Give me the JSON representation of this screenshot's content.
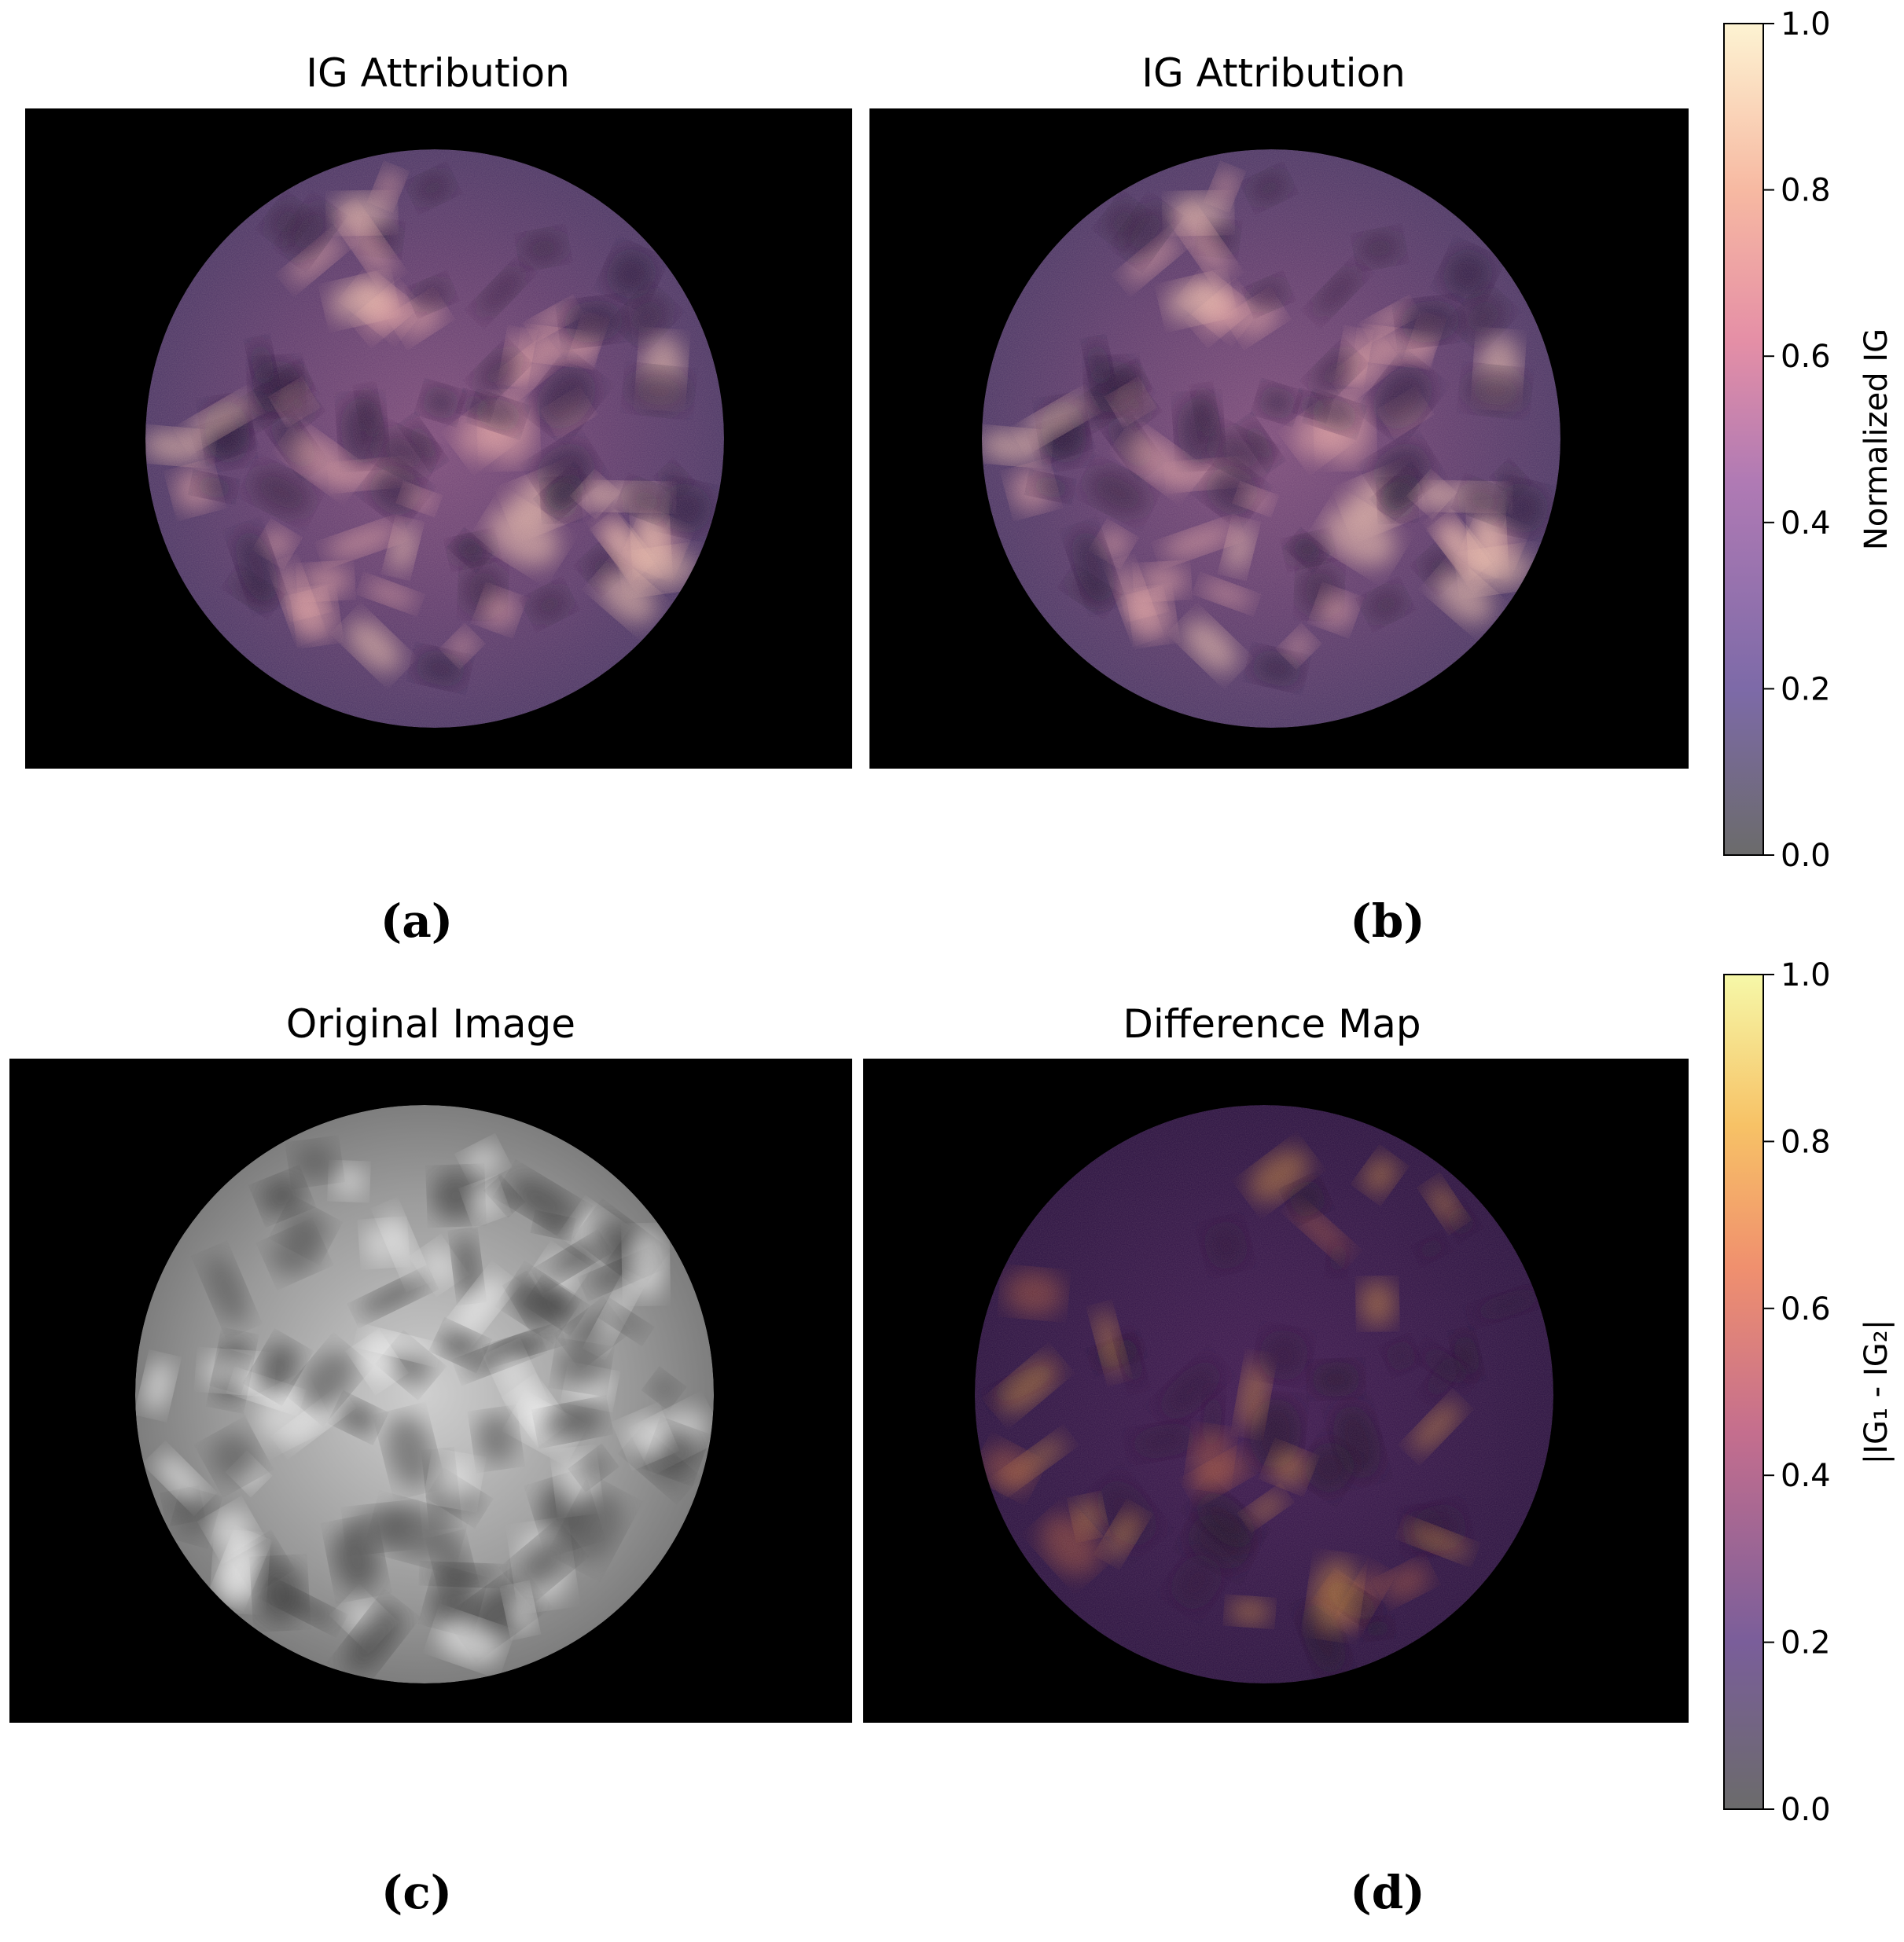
{
  "figure": {
    "panels": [
      {
        "id": "a",
        "title": "IG Attribution",
        "label": "(a)",
        "colormap": "magma"
      },
      {
        "id": "b",
        "title": "IG Attribution",
        "label": "(b)",
        "colormap": "magma"
      },
      {
        "id": "c",
        "title": "Original Image",
        "label": "(c)",
        "colormap": "gray"
      },
      {
        "id": "d",
        "title": "Difference Map",
        "label": "(d)",
        "colormap": "inferno"
      }
    ],
    "colorbars": [
      {
        "id": "top",
        "label": "Normalized IG",
        "ticks": [
          "0.0",
          "0.2",
          "0.4",
          "0.6",
          "0.8",
          "1.0"
        ],
        "range": [
          0,
          1
        ],
        "colors": [
          "#6b6b6b",
          "#7d6aa8",
          "#b07ab4",
          "#e58fa6",
          "#f7b9a2",
          "#fdf3d2"
        ]
      },
      {
        "id": "bottom",
        "label": "|IG₁ - IG₂|",
        "ticks": [
          "0.0",
          "0.2",
          "0.4",
          "0.6",
          "0.8",
          "1.0"
        ],
        "range": [
          0,
          1
        ],
        "colors": [
          "#6b6b6b",
          "#7a5e9a",
          "#c46e8e",
          "#f0906e",
          "#f7c266",
          "#f6f8a8"
        ]
      }
    ]
  },
  "chart_data": [
    {
      "type": "heatmap",
      "title": "IG Attribution",
      "panel": "(a)",
      "colorbar_label": "Normalized IG",
      "value_range": [
        0,
        1
      ],
      "colorbar_ticks": [
        0.0,
        0.2,
        0.4,
        0.6,
        0.8,
        1.0
      ]
    },
    {
      "type": "heatmap",
      "title": "IG Attribution",
      "panel": "(b)",
      "colorbar_label": "Normalized IG",
      "value_range": [
        0,
        1
      ],
      "colorbar_ticks": [
        0.0,
        0.2,
        0.4,
        0.6,
        0.8,
        1.0
      ]
    },
    {
      "type": "heatmap",
      "title": "Original Image",
      "panel": "(c)"
    },
    {
      "type": "heatmap",
      "title": "Difference Map",
      "panel": "(d)",
      "colorbar_label": "|IG₁ - IG₂|",
      "value_range": [
        0,
        1
      ],
      "colorbar_ticks": [
        0.0,
        0.2,
        0.4,
        0.6,
        0.8,
        1.0
      ]
    }
  ]
}
